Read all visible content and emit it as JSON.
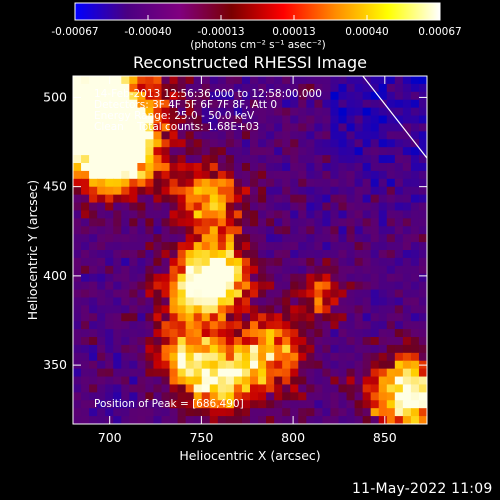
{
  "chart_data": {
    "type": "heatmap",
    "title": "Reconstructed RHESSI Image",
    "xlabel": "Heliocentric X (arcsec)",
    "ylabel": "Heliocentric Y (arcsec)",
    "xlim": [
      680,
      873
    ],
    "ylim": [
      317,
      512
    ],
    "x_ticks": [
      700,
      750,
      800,
      850
    ],
    "y_ticks": [
      350,
      400,
      450,
      500
    ],
    "colorbar": {
      "min": -0.00067,
      "max": 0.00067,
      "ticks": [
        "-0.00067",
        "-0.00040",
        "-0.00013",
        "0.00013",
        "0.00040",
        "0.00067"
      ],
      "unit": "(photons cm⁻² s⁻¹ asec⁻²)",
      "colors": [
        "#0000ff",
        "#4b0082",
        "#800080",
        "#7a0000",
        "#ff0000",
        "#ff8c00",
        "#ffff00",
        "#ffffff"
      ]
    },
    "annotations": [
      "14-Feb-2013 12:56:36.000 to 12:58:00.000",
      "Detectors: 3F 4F 5F 6F 7F 8F, Att 0",
      "Energy Range: 25.0 - 50.0 keV",
      "Clean    Total counts: 1.68E+03"
    ],
    "peak_label": "Position of Peak = [686,490]",
    "peak_position": [
      686,
      490
    ],
    "limb_line": {
      "from": [
        838,
        512
      ],
      "to": [
        873,
        466
      ]
    }
  },
  "footer": {
    "date": "11-May-2022 11:09"
  }
}
